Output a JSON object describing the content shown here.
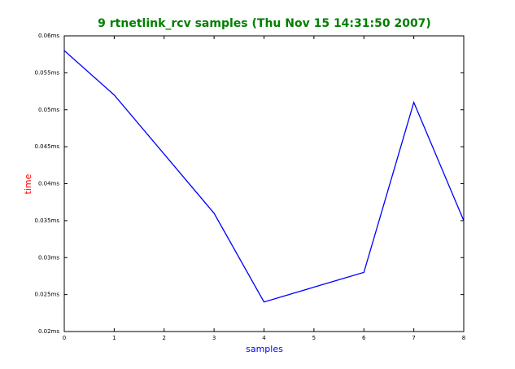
{
  "chart_data": {
    "type": "line",
    "title": "9 rtnetlink_rcv samples (Thu Nov 15 14:31:50 2007)",
    "xlabel": "samples",
    "ylabel": "time",
    "x": [
      0,
      1,
      2,
      3,
      4,
      5,
      6,
      7,
      8
    ],
    "series": [
      {
        "color": "#0000ff",
        "values": [
          0.058,
          0.052,
          0.044,
          0.036,
          0.024,
          0.026,
          0.028,
          0.051,
          0.035
        ]
      }
    ],
    "xlim": [
      0,
      8
    ],
    "xticks": [
      0,
      1,
      2,
      3,
      4,
      5,
      6,
      7,
      8
    ],
    "ylim": [
      0.02,
      0.06
    ],
    "yticks": [
      {
        "value": 0.02,
        "label": "0.02ms"
      },
      {
        "value": 0.025,
        "label": "0.025ms"
      },
      {
        "value": 0.03,
        "label": "0.03ms"
      },
      {
        "value": 0.035,
        "label": "0.035ms"
      },
      {
        "value": 0.04,
        "label": "0.04ms"
      },
      {
        "value": 0.045,
        "label": "0.045ms"
      },
      {
        "value": 0.05,
        "label": "0.05ms"
      },
      {
        "value": 0.055,
        "label": "0.055ms"
      },
      {
        "value": 0.06,
        "label": "0.06ms"
      }
    ],
    "title_color": "#008000",
    "xlabel_color": "#0000ff",
    "ylabel_color": "#ff0000",
    "grid": false
  }
}
